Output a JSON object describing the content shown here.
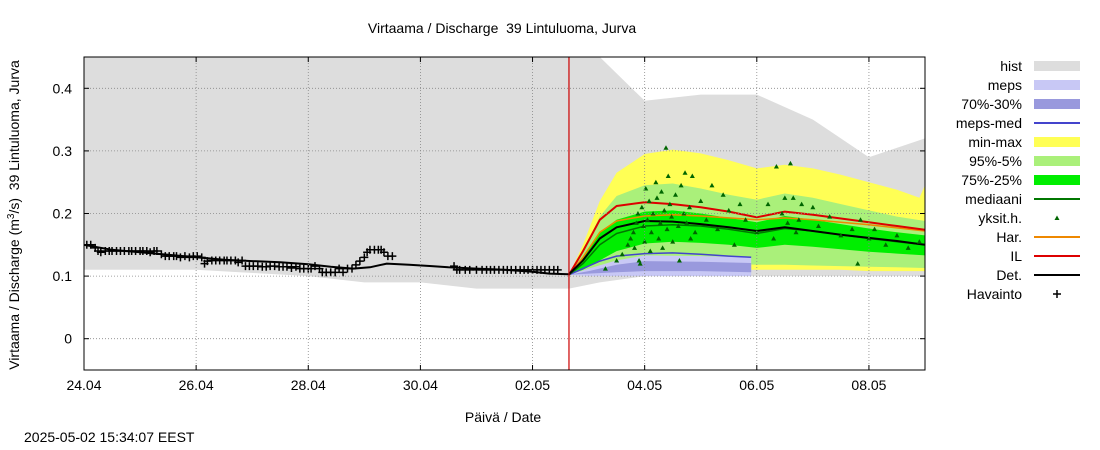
{
  "chart_data": {
    "type": "line",
    "title": "Virtaama / Discharge  39 Lintuluoma, Jurva",
    "xlabel": "Päivä / Date",
    "ylabel_parts": [
      "Virtaama / Discharge (m",
      "3",
      "/s)  39 Lintuluoma, Jurva"
    ],
    "ylim": [
      -0.05,
      0.45
    ],
    "xlim_days": [
      0,
      15
    ],
    "grid": true,
    "legend_position": "right",
    "xtick_labels": [
      "24.04",
      "26.04",
      "28.04",
      "30.04",
      "02.05",
      "04.05",
      "06.05",
      "08.05"
    ],
    "xtick_days": [
      0,
      2,
      4,
      6,
      8,
      10,
      12,
      14
    ],
    "ytick_labels": [
      "0",
      "0.1",
      "0.2",
      "0.3",
      "0.4"
    ],
    "ytick_values": [
      0,
      0.1,
      0.2,
      0.3,
      0.4
    ],
    "forecast_start_day": 8.65,
    "colors": {
      "hist": "#dddddd",
      "meps": "#c8c8f5",
      "p70_30": "#9999dd",
      "meps_med": "#4444cc",
      "minmax": "#ffff55",
      "p95_5": "#aaf07a",
      "p75_25": "#00ee00",
      "mediaani": "#007700",
      "yksit": "#006600",
      "har": "#ee8800",
      "il": "#dd0000",
      "det": "#000000",
      "havainto": "#000000",
      "vline": "#cc0000"
    },
    "legend": [
      {
        "label": "hist",
        "kind": "box",
        "color": "#dddddd"
      },
      {
        "label": "meps",
        "kind": "box",
        "color": "#c8c8f5"
      },
      {
        "label": "70%-30%",
        "kind": "box",
        "color": "#9999dd"
      },
      {
        "label": "meps-med",
        "kind": "line",
        "color": "#4444cc"
      },
      {
        "label": "min-max",
        "kind": "box",
        "color": "#ffff55"
      },
      {
        "label": "95%-5%",
        "kind": "box",
        "color": "#aaf07a"
      },
      {
        "label": "75%-25%",
        "kind": "box",
        "color": "#00ee00"
      },
      {
        "label": "mediaani",
        "kind": "line",
        "color": "#007700"
      },
      {
        "label": "yksit.h.",
        "kind": "tri",
        "color": "#006600"
      },
      {
        "label": "Har.",
        "kind": "line",
        "color": "#ee8800"
      },
      {
        "label": "IL",
        "kind": "line",
        "color": "#dd0000"
      },
      {
        "label": "Det.",
        "kind": "line",
        "color": "#000000"
      },
      {
        "label": "Havainto",
        "kind": "plus",
        "color": "#000000"
      }
    ],
    "series": {
      "hist": {
        "x": [
          0,
          2,
          4,
          5,
          6,
          7,
          8,
          8.65,
          9.2,
          10,
          11,
          12,
          13,
          14,
          15
        ],
        "upper": [
          0.45,
          0.45,
          0.45,
          0.45,
          0.45,
          0.45,
          0.45,
          0.45,
          0.45,
          0.38,
          0.39,
          0.39,
          0.35,
          0.29,
          0.32
        ],
        "lower": [
          0.11,
          0.11,
          0.1,
          0.09,
          0.09,
          0.08,
          0.08,
          0.08,
          0.09,
          0.1,
          0.1,
          0.1,
          0.1,
          0.1,
          0.1
        ]
      },
      "meps": {
        "x": [
          8.65,
          9.0,
          9.5,
          10,
          11,
          11.9
        ],
        "upper": [
          0.102,
          0.112,
          0.125,
          0.133,
          0.132,
          0.13
        ],
        "lower": [
          0.102,
          0.1,
          0.1,
          0.1,
          0.1,
          0.1
        ]
      },
      "p70_30": {
        "x": [
          8.65,
          9.0,
          9.5,
          10,
          11,
          11.9
        ],
        "upper": [
          0.102,
          0.108,
          0.118,
          0.124,
          0.123,
          0.121
        ],
        "lower": [
          0.102,
          0.104,
          0.106,
          0.108,
          0.108,
          0.106
        ]
      },
      "meps_med": {
        "x": [
          8.65,
          8.9,
          9.2,
          9.5,
          10,
          10.5,
          11,
          11.5,
          11.9
        ],
        "y": [
          0.102,
          0.112,
          0.124,
          0.132,
          0.136,
          0.137,
          0.135,
          0.132,
          0.13
        ]
      },
      "minmax": {
        "x": [
          8.65,
          8.9,
          9.2,
          9.5,
          10,
          10.5,
          11,
          11.5,
          12,
          12.5,
          13,
          13.5,
          14,
          14.5,
          14.9,
          15
        ],
        "upper": [
          0.102,
          0.15,
          0.22,
          0.265,
          0.295,
          0.302,
          0.296,
          0.285,
          0.272,
          0.278,
          0.272,
          0.262,
          0.25,
          0.238,
          0.225,
          0.245
        ],
        "lower": [
          0.102,
          0.104,
          0.106,
          0.108,
          0.11,
          0.11,
          0.11,
          0.11,
          0.11,
          0.11,
          0.11,
          0.11,
          0.108,
          0.108,
          0.108,
          0.108
        ]
      },
      "p95_5": {
        "x": [
          8.65,
          8.9,
          9.2,
          9.5,
          10,
          10.5,
          11,
          11.5,
          12,
          12.5,
          13,
          13.5,
          14,
          14.5,
          15
        ],
        "upper": [
          0.102,
          0.14,
          0.195,
          0.228,
          0.245,
          0.248,
          0.24,
          0.23,
          0.222,
          0.232,
          0.225,
          0.215,
          0.205,
          0.195,
          0.188
        ],
        "lower": [
          0.102,
          0.106,
          0.11,
          0.115,
          0.12,
          0.122,
          0.122,
          0.12,
          0.118,
          0.118,
          0.117,
          0.116,
          0.115,
          0.114,
          0.113
        ]
      },
      "p75_25": {
        "x": [
          8.65,
          8.9,
          9.2,
          9.5,
          10,
          10.5,
          11,
          11.5,
          12,
          12.5,
          13,
          13.5,
          14,
          14.5,
          15
        ],
        "upper": [
          0.102,
          0.13,
          0.17,
          0.19,
          0.203,
          0.205,
          0.2,
          0.193,
          0.186,
          0.196,
          0.19,
          0.183,
          0.176,
          0.17,
          0.165
        ],
        "lower": [
          0.102,
          0.11,
          0.125,
          0.14,
          0.152,
          0.155,
          0.153,
          0.15,
          0.145,
          0.15,
          0.147,
          0.143,
          0.139,
          0.136,
          0.133
        ]
      },
      "mediaani": {
        "x": [
          8.65,
          8.9,
          9.2,
          9.5,
          10,
          10.5,
          11,
          11.5,
          12,
          12.5,
          13,
          13.5,
          14,
          14.5,
          15
        ],
        "y": [
          0.102,
          0.12,
          0.15,
          0.168,
          0.18,
          0.182,
          0.18,
          0.175,
          0.168,
          0.176,
          0.172,
          0.166,
          0.16,
          0.155,
          0.15
        ]
      },
      "har": {
        "x": [
          8.65,
          8.9,
          9.2,
          9.5,
          10,
          10.5,
          11,
          11.5,
          12,
          12.5,
          13,
          13.5,
          14,
          14.5,
          15
        ],
        "y": [
          0.102,
          0.13,
          0.17,
          0.188,
          0.196,
          0.198,
          0.196,
          0.193,
          0.19,
          0.193,
          0.19,
          0.186,
          0.182,
          0.177,
          0.172
        ]
      },
      "il": {
        "x": [
          8.65,
          8.9,
          9.2,
          9.5,
          10,
          10.5,
          11,
          11.5,
          12,
          12.5,
          13,
          13.5,
          14,
          14.5,
          15
        ],
        "y": [
          0.102,
          0.14,
          0.19,
          0.212,
          0.218,
          0.215,
          0.21,
          0.203,
          0.194,
          0.203,
          0.198,
          0.192,
          0.186,
          0.18,
          0.174
        ]
      },
      "det": {
        "x": [
          0,
          0.5,
          1,
          1.5,
          2,
          2.5,
          3,
          3.5,
          4,
          4.4,
          4.8,
          5.1,
          5.4,
          5.8,
          6.2,
          6.5,
          7,
          7.5,
          8,
          8.3,
          8.65,
          8.9,
          9.2,
          9.5,
          10,
          10.5,
          11,
          11.5,
          12,
          12.5,
          13,
          13.5,
          14,
          14.5,
          15
        ],
        "y": [
          0.15,
          0.142,
          0.138,
          0.134,
          0.13,
          0.126,
          0.124,
          0.122,
          0.119,
          0.115,
          0.112,
          0.114,
          0.12,
          0.118,
          0.116,
          0.114,
          0.112,
          0.11,
          0.107,
          0.104,
          0.103,
          0.125,
          0.16,
          0.178,
          0.188,
          0.187,
          0.183,
          0.178,
          0.172,
          0.178,
          0.172,
          0.166,
          0.161,
          0.156,
          0.15
        ]
      },
      "havainto": [
        [
          0.05,
          0.15
        ],
        [
          0.12,
          0.15
        ],
        [
          0.2,
          0.145
        ],
        [
          0.25,
          0.14
        ],
        [
          0.3,
          0.138
        ],
        [
          0.38,
          0.14
        ],
        [
          0.45,
          0.14
        ],
        [
          0.5,
          0.14
        ],
        [
          0.58,
          0.14
        ],
        [
          0.65,
          0.14
        ],
        [
          0.72,
          0.14
        ],
        [
          0.8,
          0.14
        ],
        [
          0.85,
          0.14
        ],
        [
          0.92,
          0.14
        ],
        [
          1.0,
          0.14
        ],
        [
          1.05,
          0.14
        ],
        [
          1.12,
          0.14
        ],
        [
          1.18,
          0.138
        ],
        [
          1.25,
          0.14
        ],
        [
          1.3,
          0.14
        ],
        [
          1.38,
          0.135
        ],
        [
          1.45,
          0.132
        ],
        [
          1.52,
          0.132
        ],
        [
          1.6,
          0.132
        ],
        [
          1.65,
          0.132
        ],
        [
          1.72,
          0.13
        ],
        [
          1.8,
          0.132
        ],
        [
          1.88,
          0.13
        ],
        [
          1.95,
          0.132
        ],
        [
          2.02,
          0.132
        ],
        [
          2.1,
          0.13
        ],
        [
          2.15,
          0.12
        ],
        [
          2.2,
          0.124
        ],
        [
          2.28,
          0.125
        ],
        [
          2.35,
          0.125
        ],
        [
          2.42,
          0.125
        ],
        [
          2.5,
          0.125
        ],
        [
          2.55,
          0.125
        ],
        [
          2.62,
          0.125
        ],
        [
          2.7,
          0.125
        ],
        [
          2.75,
          0.122
        ],
        [
          2.82,
          0.125
        ],
        [
          2.88,
          0.116
        ],
        [
          2.95,
          0.116
        ],
        [
          3.02,
          0.116
        ],
        [
          3.1,
          0.116
        ],
        [
          3.18,
          0.115
        ],
        [
          3.25,
          0.115
        ],
        [
          3.32,
          0.116
        ],
        [
          3.4,
          0.116
        ],
        [
          3.48,
          0.115
        ],
        [
          3.55,
          0.115
        ],
        [
          3.62,
          0.115
        ],
        [
          3.7,
          0.113
        ],
        [
          3.78,
          0.115
        ],
        [
          3.85,
          0.112
        ],
        [
          3.92,
          0.112
        ],
        [
          4.0,
          0.112
        ],
        [
          4.05,
          0.112
        ],
        [
          4.12,
          0.116
        ],
        [
          4.2,
          0.112
        ],
        [
          4.25,
          0.106
        ],
        [
          4.32,
          0.106
        ],
        [
          4.4,
          0.106
        ],
        [
          4.48,
          0.106
        ],
        [
          4.55,
          0.112
        ],
        [
          4.62,
          0.106
        ],
        [
          4.7,
          0.112
        ],
        [
          4.78,
          0.112
        ],
        [
          4.85,
          0.118
        ],
        [
          4.92,
          0.124
        ],
        [
          5.0,
          0.13
        ],
        [
          5.05,
          0.138
        ],
        [
          5.1,
          0.142
        ],
        [
          5.18,
          0.142
        ],
        [
          5.25,
          0.142
        ],
        [
          5.3,
          0.142
        ],
        [
          5.35,
          0.138
        ],
        [
          5.42,
          0.132
        ],
        [
          5.5,
          0.132
        ],
        [
          6.6,
          0.116
        ],
        [
          6.65,
          0.11
        ],
        [
          6.7,
          0.11
        ],
        [
          6.8,
          0.11
        ],
        [
          6.88,
          0.11
        ],
        [
          7.0,
          0.11
        ],
        [
          7.1,
          0.11
        ],
        [
          7.18,
          0.11
        ],
        [
          7.25,
          0.11
        ],
        [
          7.32,
          0.11
        ],
        [
          7.4,
          0.11
        ],
        [
          7.48,
          0.11
        ],
        [
          7.55,
          0.11
        ],
        [
          7.62,
          0.11
        ],
        [
          7.7,
          0.11
        ],
        [
          7.78,
          0.11
        ],
        [
          7.85,
          0.11
        ],
        [
          7.92,
          0.11
        ],
        [
          8.0,
          0.11
        ],
        [
          8.08,
          0.11
        ],
        [
          8.15,
          0.11
        ],
        [
          8.22,
          0.11
        ],
        [
          8.3,
          0.11
        ],
        [
          8.38,
          0.11
        ],
        [
          8.45,
          0.11
        ]
      ],
      "yksit": [
        [
          9.3,
          0.112
        ],
        [
          9.5,
          0.125
        ],
        [
          9.6,
          0.135
        ],
        [
          9.7,
          0.15
        ],
        [
          9.75,
          0.16
        ],
        [
          9.8,
          0.17
        ],
        [
          9.82,
          0.145
        ],
        [
          9.85,
          0.185
        ],
        [
          9.88,
          0.2
        ],
        [
          9.9,
          0.125
        ],
        [
          9.92,
          0.12
        ],
        [
          9.95,
          0.21
        ],
        [
          9.98,
          0.18
        ],
        [
          10.0,
          0.155
        ],
        [
          10.02,
          0.24
        ],
        [
          10.05,
          0.19
        ],
        [
          10.08,
          0.22
        ],
        [
          10.1,
          0.14
        ],
        [
          10.12,
          0.17
        ],
        [
          10.15,
          0.2
        ],
        [
          10.2,
          0.25
        ],
        [
          10.22,
          0.225
        ],
        [
          10.25,
          0.16
        ],
        [
          10.28,
          0.185
        ],
        [
          10.3,
          0.235
        ],
        [
          10.32,
          0.145
        ],
        [
          10.35,
          0.205
        ],
        [
          10.38,
          0.305
        ],
        [
          10.4,
          0.175
        ],
        [
          10.42,
          0.26
        ],
        [
          10.45,
          0.215
        ],
        [
          10.48,
          0.195
        ],
        [
          10.5,
          0.155
        ],
        [
          10.55,
          0.23
        ],
        [
          10.6,
          0.18
        ],
        [
          10.62,
          0.125
        ],
        [
          10.65,
          0.245
        ],
        [
          10.7,
          0.2
        ],
        [
          10.72,
          0.265
        ],
        [
          10.75,
          0.185
        ],
        [
          10.8,
          0.21
        ],
        [
          10.82,
          0.16
        ],
        [
          10.85,
          0.26
        ],
        [
          10.9,
          0.17
        ],
        [
          11.0,
          0.22
        ],
        [
          11.1,
          0.19
        ],
        [
          11.2,
          0.245
        ],
        [
          11.3,
          0.175
        ],
        [
          11.4,
          0.23
        ],
        [
          11.5,
          0.205
        ],
        [
          11.6,
          0.15
        ],
        [
          11.7,
          0.215
        ],
        [
          11.8,
          0.19
        ],
        [
          12.0,
          0.17
        ],
        [
          12.2,
          0.215
        ],
        [
          12.3,
          0.16
        ],
        [
          12.35,
          0.275
        ],
        [
          12.45,
          0.2
        ],
        [
          12.5,
          0.225
        ],
        [
          12.55,
          0.185
        ],
        [
          12.6,
          0.28
        ],
        [
          12.65,
          0.225
        ],
        [
          12.7,
          0.17
        ],
        [
          12.75,
          0.19
        ],
        [
          12.8,
          0.215
        ],
        [
          13.0,
          0.21
        ],
        [
          13.1,
          0.18
        ],
        [
          13.3,
          0.195
        ],
        [
          13.5,
          0.165
        ],
        [
          13.7,
          0.175
        ],
        [
          13.8,
          0.12
        ],
        [
          13.85,
          0.19
        ],
        [
          14.0,
          0.16
        ],
        [
          14.1,
          0.175
        ],
        [
          14.3,
          0.15
        ],
        [
          14.5,
          0.165
        ],
        [
          14.7,
          0.145
        ],
        [
          14.9,
          0.155
        ]
      ]
    }
  },
  "footer": {
    "timestamp": "2025-05-02 15:34:07 EEST"
  }
}
